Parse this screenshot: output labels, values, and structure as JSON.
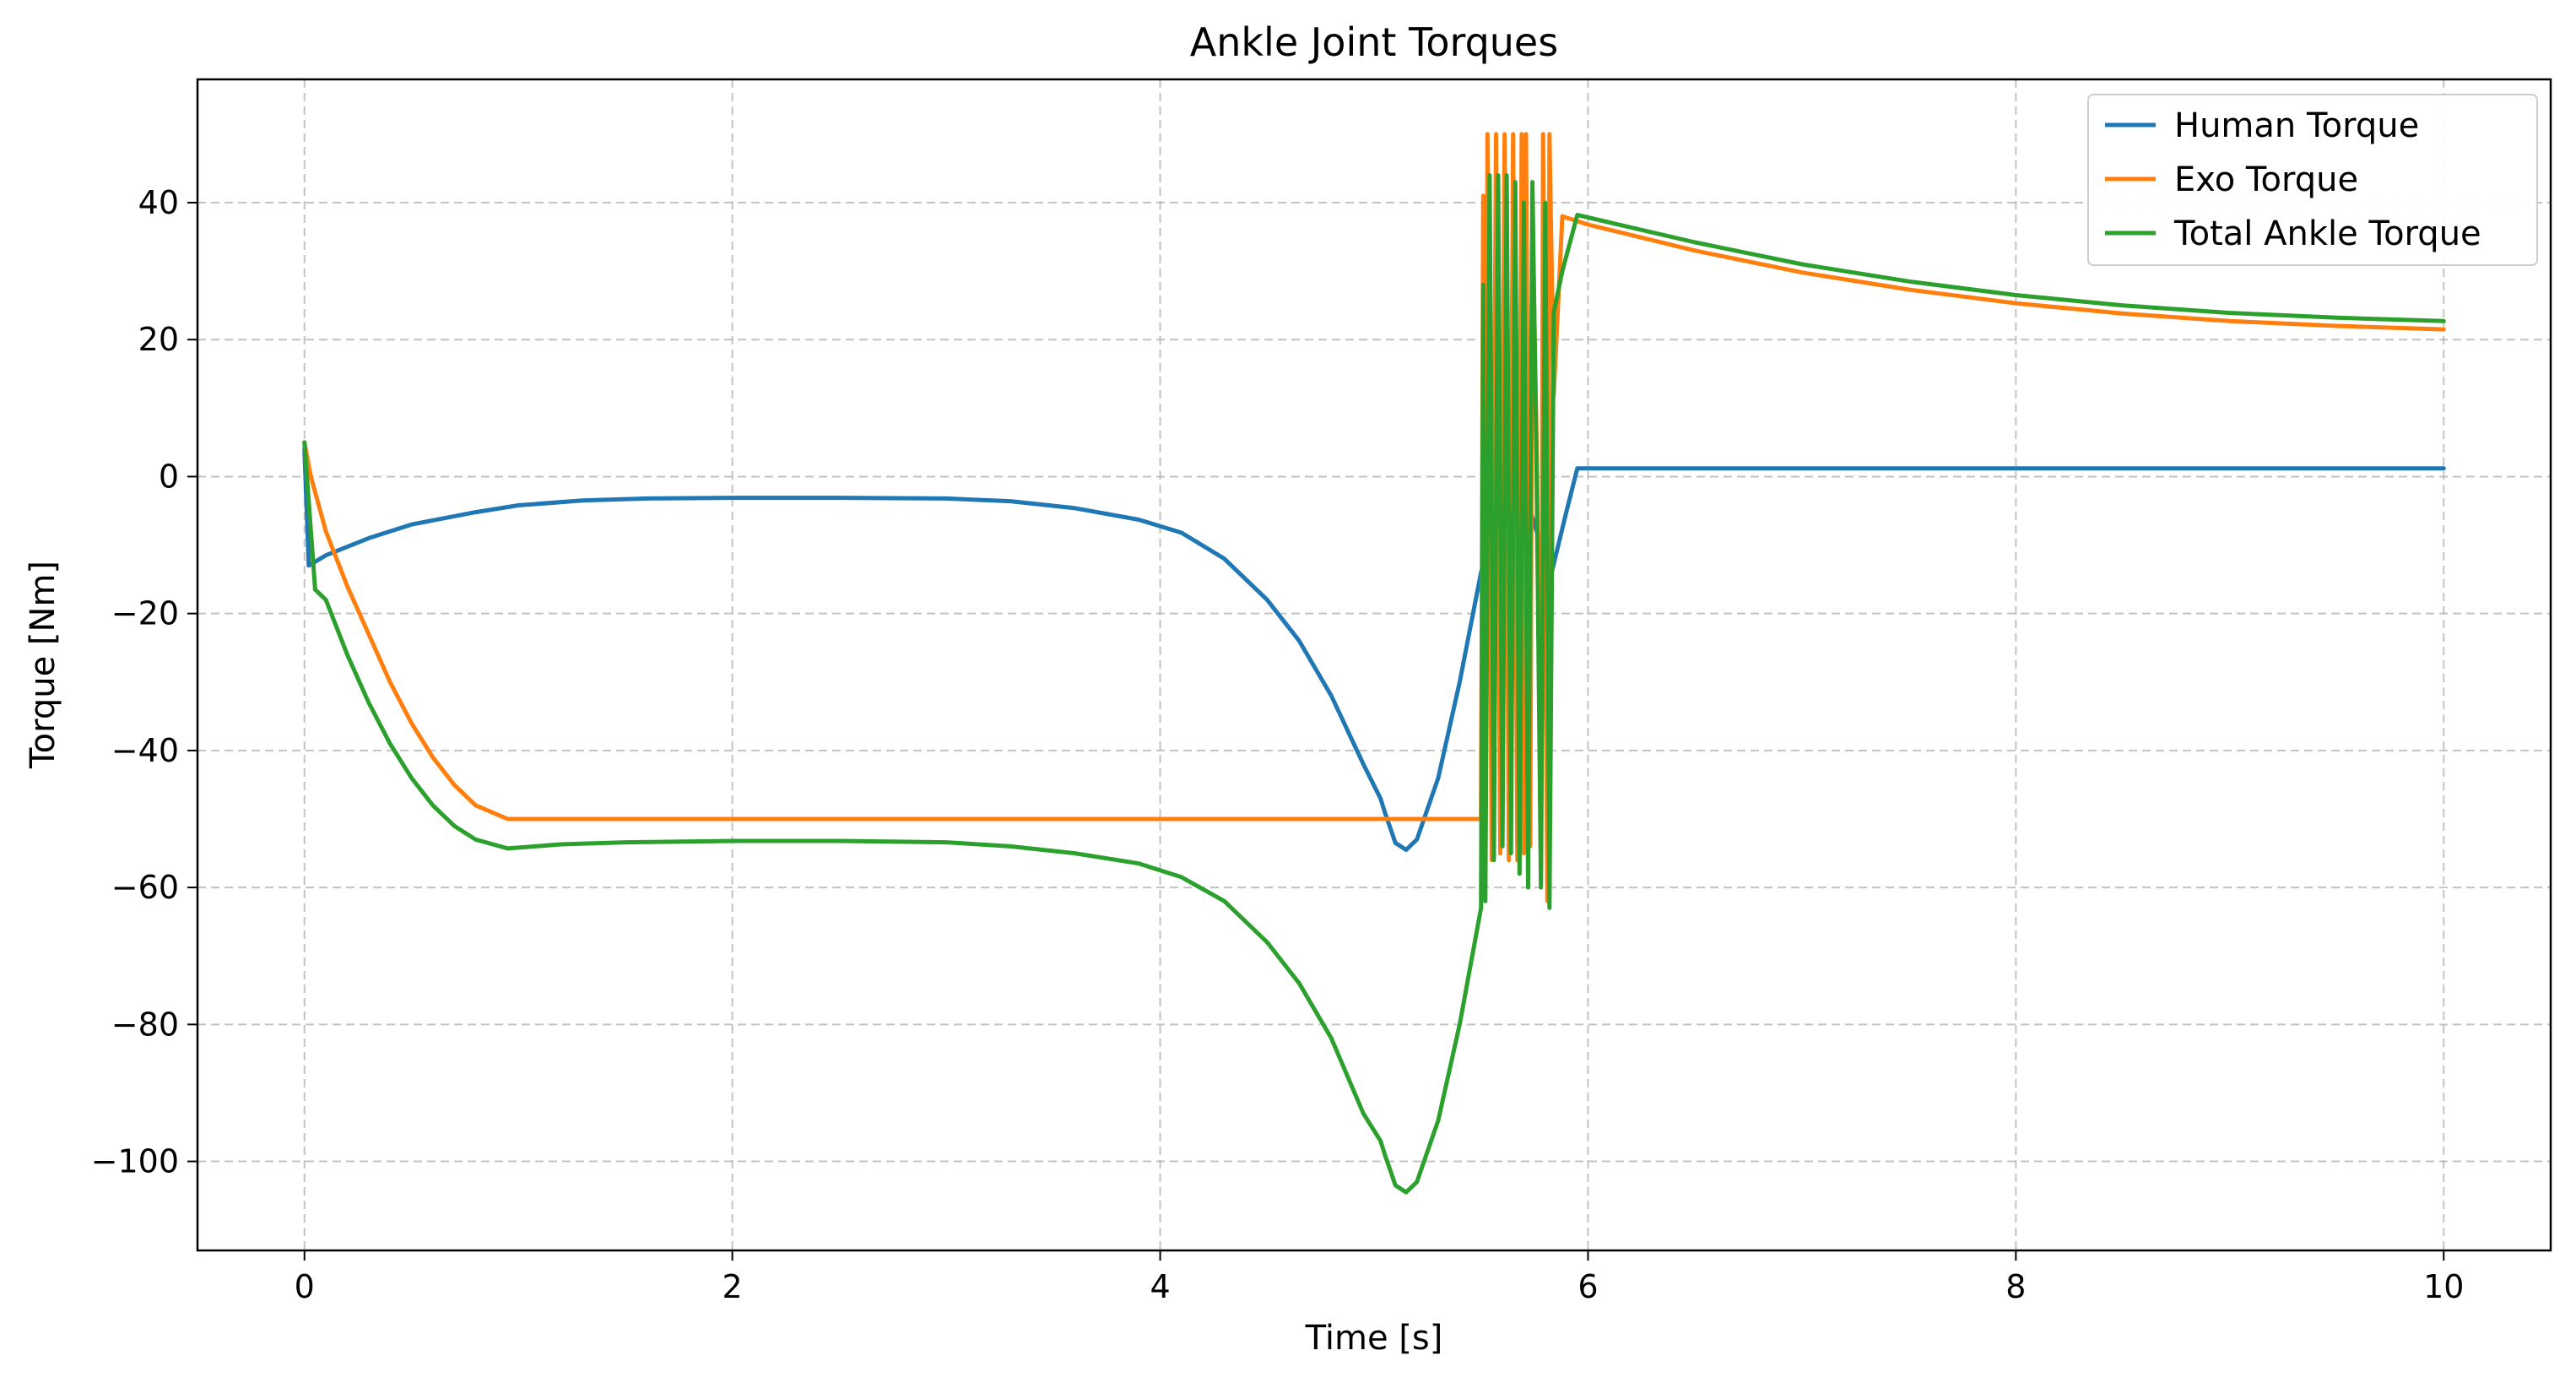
{
  "chart_data": {
    "type": "line",
    "title": "Ankle Joint Torques",
    "xlabel": "Time [s]",
    "ylabel": "Torque [Nm]",
    "xlim": [
      -0.5,
      10.5
    ],
    "ylim": [
      -113,
      58
    ],
    "xticks": [
      0,
      2,
      4,
      6,
      8,
      10
    ],
    "xtick_labels": [
      "0",
      "2",
      "4",
      "6",
      "8",
      "10"
    ],
    "yticks": [
      -100,
      -80,
      -60,
      -40,
      -20,
      0,
      20,
      40
    ],
    "ytick_labels": [
      "−100",
      "−80",
      "−60",
      "−40",
      "−20",
      "0",
      "20",
      "40"
    ],
    "grid": true,
    "legend_position": "upper-right",
    "series": [
      {
        "name": "Human Torque",
        "color": "#1f77b4",
        "points": [
          [
            0,
            4
          ],
          [
            0.02,
            -13
          ],
          [
            0.1,
            -11.5
          ],
          [
            0.3,
            -9
          ],
          [
            0.5,
            -7
          ],
          [
            0.8,
            -5.2
          ],
          [
            1.0,
            -4.2
          ],
          [
            1.3,
            -3.5
          ],
          [
            1.6,
            -3.2
          ],
          [
            2.0,
            -3.1
          ],
          [
            2.5,
            -3.1
          ],
          [
            3.0,
            -3.2
          ],
          [
            3.3,
            -3.6
          ],
          [
            3.6,
            -4.6
          ],
          [
            3.9,
            -6.3
          ],
          [
            4.1,
            -8.2
          ],
          [
            4.3,
            -12
          ],
          [
            4.5,
            -18
          ],
          [
            4.65,
            -24
          ],
          [
            4.8,
            -32
          ],
          [
            4.95,
            -42
          ],
          [
            5.03,
            -47
          ],
          [
            5.05,
            -49
          ],
          [
            5.1,
            -53.5
          ],
          [
            5.15,
            -54.5
          ],
          [
            5.2,
            -53
          ],
          [
            5.3,
            -44
          ],
          [
            5.4,
            -30
          ],
          [
            5.5,
            -14
          ],
          [
            5.6,
            -3
          ],
          [
            5.65,
            -6
          ],
          [
            5.72,
            -4
          ],
          [
            5.76,
            -8
          ],
          [
            5.83,
            -14
          ],
          [
            5.9,
            -5
          ],
          [
            5.95,
            1.2
          ],
          [
            6.5,
            1.2
          ],
          [
            8,
            1.2
          ],
          [
            10,
            1.2
          ]
        ]
      },
      {
        "name": "Exo Torque",
        "color": "#ff7f0e",
        "points": [
          [
            0,
            5
          ],
          [
            0.03,
            0
          ],
          [
            0.1,
            -8
          ],
          [
            0.2,
            -16
          ],
          [
            0.3,
            -23
          ],
          [
            0.4,
            -30
          ],
          [
            0.5,
            -36
          ],
          [
            0.6,
            -41
          ],
          [
            0.7,
            -45
          ],
          [
            0.8,
            -48
          ],
          [
            0.95,
            -50
          ],
          [
            2,
            -50
          ],
          [
            3,
            -50
          ],
          [
            4,
            -50
          ],
          [
            5,
            -50
          ],
          [
            5.5,
            -50
          ],
          [
            5.51,
            41
          ],
          [
            5.52,
            -56
          ],
          [
            5.53,
            50
          ],
          [
            5.55,
            -56
          ],
          [
            5.57,
            50
          ],
          [
            5.59,
            -55
          ],
          [
            5.61,
            50
          ],
          [
            5.63,
            -56
          ],
          [
            5.65,
            50
          ],
          [
            5.67,
            -56
          ],
          [
            5.69,
            50
          ],
          [
            5.7,
            -55
          ],
          [
            5.71,
            50
          ],
          [
            5.73,
            -54
          ],
          [
            5.74,
            38
          ],
          [
            5.76,
            5
          ],
          [
            5.78,
            -58
          ],
          [
            5.79,
            50
          ],
          [
            5.81,
            -62
          ],
          [
            5.82,
            50
          ],
          [
            5.84,
            12
          ],
          [
            5.88,
            38
          ],
          [
            6,
            36.8
          ],
          [
            6.5,
            33
          ],
          [
            7,
            29.8
          ],
          [
            7.5,
            27.3
          ],
          [
            8,
            25.3
          ],
          [
            8.5,
            23.8
          ],
          [
            9,
            22.7
          ],
          [
            9.5,
            22
          ],
          [
            10,
            21.5
          ]
        ]
      },
      {
        "name": "Total Ankle Torque",
        "color": "#2ca02c",
        "points": [
          [
            0,
            5
          ],
          [
            0.05,
            -16.5
          ],
          [
            0.1,
            -18
          ],
          [
            0.2,
            -26
          ],
          [
            0.3,
            -33
          ],
          [
            0.4,
            -39
          ],
          [
            0.5,
            -44
          ],
          [
            0.6,
            -48
          ],
          [
            0.7,
            -51
          ],
          [
            0.8,
            -53
          ],
          [
            0.95,
            -54.3
          ],
          [
            1.2,
            -53.7
          ],
          [
            1.5,
            -53.4
          ],
          [
            2,
            -53.2
          ],
          [
            2.5,
            -53.2
          ],
          [
            3,
            -53.4
          ],
          [
            3.3,
            -54
          ],
          [
            3.6,
            -55
          ],
          [
            3.9,
            -56.5
          ],
          [
            4.1,
            -58.5
          ],
          [
            4.3,
            -62
          ],
          [
            4.5,
            -68
          ],
          [
            4.65,
            -74
          ],
          [
            4.8,
            -82
          ],
          [
            4.95,
            -93
          ],
          [
            5.03,
            -97
          ],
          [
            5.05,
            -99
          ],
          [
            5.1,
            -103.5
          ],
          [
            5.15,
            -104.5
          ],
          [
            5.2,
            -103
          ],
          [
            5.3,
            -94
          ],
          [
            5.4,
            -80
          ],
          [
            5.5,
            -63
          ],
          [
            5.51,
            28
          ],
          [
            5.52,
            -62
          ],
          [
            5.54,
            44
          ],
          [
            5.56,
            -56
          ],
          [
            5.58,
            44
          ],
          [
            5.6,
            -54
          ],
          [
            5.62,
            44
          ],
          [
            5.64,
            -55
          ],
          [
            5.66,
            43
          ],
          [
            5.68,
            -58
          ],
          [
            5.7,
            40
          ],
          [
            5.72,
            -60
          ],
          [
            5.74,
            43
          ],
          [
            5.76,
            0
          ],
          [
            5.78,
            -60
          ],
          [
            5.8,
            40
          ],
          [
            5.82,
            -63
          ],
          [
            5.84,
            24
          ],
          [
            5.88,
            30
          ],
          [
            5.95,
            38.2
          ],
          [
            6.5,
            34.2
          ],
          [
            7,
            31
          ],
          [
            7.5,
            28.5
          ],
          [
            8,
            26.5
          ],
          [
            8.5,
            25
          ],
          [
            9,
            23.9
          ],
          [
            9.5,
            23.2
          ],
          [
            10,
            22.7
          ]
        ]
      }
    ]
  }
}
